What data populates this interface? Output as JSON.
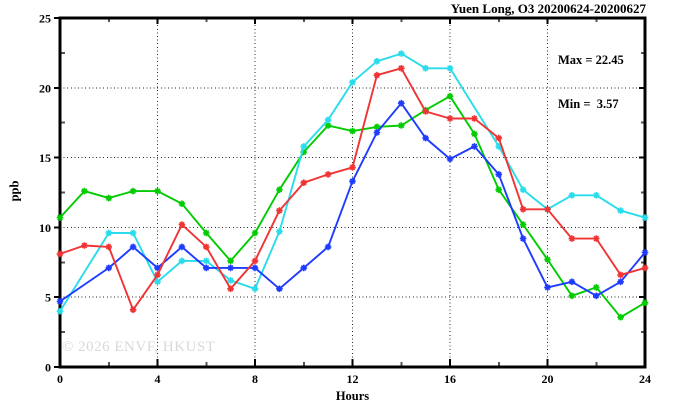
{
  "watermark": "© 2026 ENVF, HKUST",
  "chart_data": {
    "type": "line",
    "title": "Yuen Long, O3 20200624-20200627",
    "xlabel": "Hours",
    "ylabel": "ppb",
    "xlim": [
      0,
      24
    ],
    "ylim": [
      0,
      25
    ],
    "grid": "dotted",
    "legend": "none",
    "marker": "asterisk",
    "x_major_ticks": [
      0,
      4,
      8,
      12,
      16,
      20,
      24
    ],
    "x_minor_ticks": [
      2,
      6,
      10,
      14,
      18,
      22
    ],
    "y_major_ticks": [
      0,
      5,
      10,
      15,
      20,
      25
    ],
    "y_minor_ticks": [
      2.5,
      7.5,
      12.5,
      17.5,
      22.5
    ],
    "x_gridlines": [
      4,
      8,
      12,
      16,
      20
    ],
    "y_gridlines": [
      5,
      10,
      15,
      20
    ],
    "annotations": {
      "max_text": "Max = 22.45",
      "min_text": "Min =  3.57",
      "max_value": 22.45,
      "min_value": 3.57
    },
    "x": [
      0,
      1,
      2,
      3,
      4,
      5,
      6,
      7,
      8,
      9,
      10,
      11,
      12,
      13,
      14,
      15,
      16,
      17,
      18,
      19,
      20,
      21,
      22,
      23,
      24
    ],
    "series": [
      {
        "name": "green",
        "color": "#00cc00",
        "values": [
          10.7,
          12.6,
          12.1,
          12.6,
          12.6,
          11.7,
          9.6,
          7.6,
          9.6,
          12.7,
          15.4,
          17.3,
          16.9,
          17.2,
          17.3,
          18.4,
          19.4,
          16.7,
          12.7,
          10.2,
          7.7,
          5.1,
          5.7,
          3.57,
          4.6
        ]
      },
      {
        "name": "cyan",
        "color": "#29dcec",
        "values": [
          4.0,
          null,
          9.6,
          9.6,
          6.1,
          7.6,
          7.6,
          6.2,
          5.6,
          9.7,
          15.8,
          17.7,
          20.4,
          21.9,
          22.45,
          21.4,
          21.4,
          null,
          15.8,
          12.7,
          11.3,
          12.3,
          12.3,
          11.2,
          10.7
        ]
      },
      {
        "name": "blue",
        "color": "#1e3cff",
        "values": [
          4.7,
          null,
          7.1,
          8.6,
          7.1,
          8.6,
          7.1,
          7.1,
          7.1,
          5.6,
          7.1,
          8.6,
          13.3,
          16.8,
          18.9,
          16.4,
          14.9,
          15.8,
          13.8,
          9.2,
          5.7,
          6.1,
          5.1,
          6.1,
          8.2
        ]
      },
      {
        "name": "red",
        "color": "#f03434",
        "values": [
          8.1,
          8.7,
          8.6,
          4.1,
          6.6,
          10.2,
          8.6,
          5.6,
          7.6,
          11.2,
          13.2,
          13.8,
          14.3,
          20.9,
          21.4,
          18.3,
          17.8,
          17.8,
          16.4,
          11.3,
          11.3,
          9.2,
          9.2,
          6.6,
          7.1
        ]
      }
    ]
  }
}
